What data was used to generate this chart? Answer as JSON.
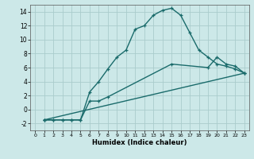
{
  "xlabel": "Humidex (Indice chaleur)",
  "background_color": "#cce8e8",
  "grid_color": "#aacccc",
  "line_color": "#1a6b6b",
  "xlim": [
    -0.5,
    23.5
  ],
  "ylim": [
    -3.0,
    15.0
  ],
  "xticks": [
    0,
    1,
    2,
    3,
    4,
    5,
    6,
    7,
    8,
    9,
    10,
    11,
    12,
    13,
    14,
    15,
    16,
    17,
    18,
    19,
    20,
    21,
    22,
    23
  ],
  "yticks": [
    -2,
    0,
    2,
    4,
    6,
    8,
    10,
    12,
    14
  ],
  "line1_x": [
    1,
    2,
    3,
    4,
    5,
    6,
    7,
    8,
    9,
    10,
    11,
    12,
    13,
    14,
    15,
    16,
    17,
    18,
    19,
    20,
    21,
    22,
    23
  ],
  "line1_y": [
    -1.5,
    -1.5,
    -1.5,
    -1.5,
    -1.5,
    2.5,
    4.0,
    5.8,
    7.5,
    8.5,
    11.5,
    12.0,
    13.5,
    14.2,
    14.5,
    13.5,
    11.0,
    8.5,
    7.5,
    6.5,
    6.2,
    5.8,
    5.2
  ],
  "line2_x": [
    1,
    2,
    3,
    4,
    5,
    6,
    7,
    8,
    15,
    19,
    20,
    21,
    22,
    23
  ],
  "line2_y": [
    -1.5,
    -1.5,
    -1.5,
    -1.5,
    -1.5,
    1.2,
    1.2,
    1.8,
    6.5,
    6.0,
    7.5,
    6.5,
    6.2,
    5.2
  ],
  "line3_x": [
    1,
    23
  ],
  "line3_y": [
    -1.5,
    5.2
  ],
  "marker_size": 3.5,
  "linewidth": 1.0
}
